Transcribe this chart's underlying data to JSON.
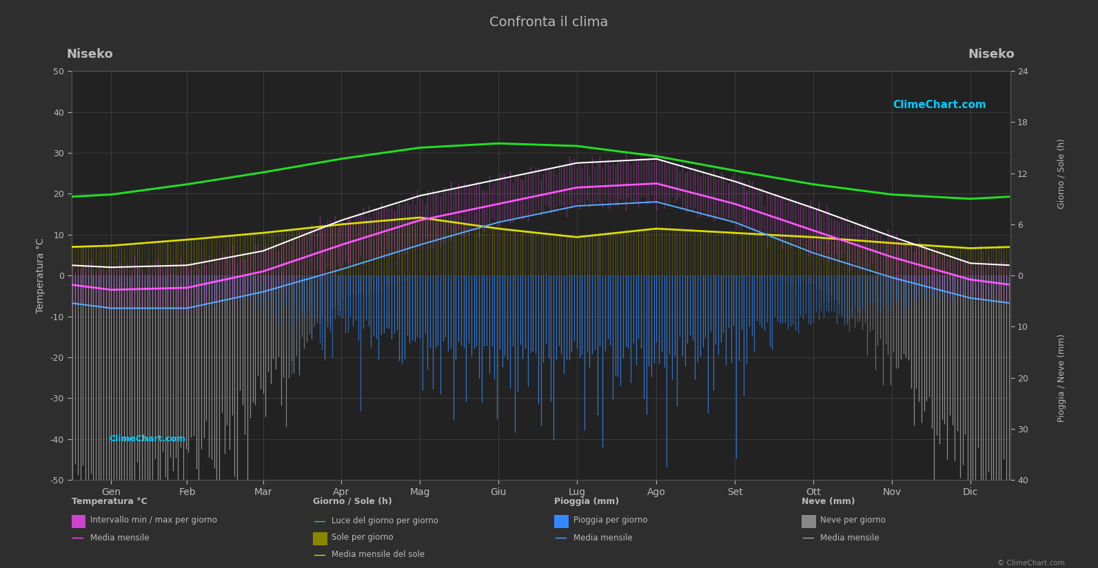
{
  "title": "Confronta il clima",
  "location": "Niseko",
  "months": [
    "Gen",
    "Feb",
    "Mar",
    "Apr",
    "Mag",
    "Giu",
    "Lug",
    "Ago",
    "Set",
    "Ott",
    "Nov",
    "Dic"
  ],
  "temp_ylim": [
    -50,
    50
  ],
  "background_color": "#2e2e2e",
  "plot_bg_color": "#222222",
  "grid_color": "#484848",
  "text_color": "#bbbbbb",
  "temp_mean_monthly": [
    -3.5,
    -3.0,
    1.0,
    7.5,
    13.5,
    17.5,
    21.5,
    22.5,
    17.5,
    11.0,
    4.5,
    -1.0
  ],
  "temp_min_monthly": [
    -8.0,
    -8.0,
    -4.0,
    1.5,
    7.5,
    13.0,
    17.0,
    18.0,
    13.0,
    5.5,
    -0.5,
    -5.5
  ],
  "temp_max_monthly": [
    2.0,
    2.5,
    6.0,
    13.5,
    19.5,
    23.5,
    27.5,
    28.5,
    23.0,
    16.5,
    9.5,
    3.0
  ],
  "daylight_monthly": [
    9.5,
    10.7,
    12.1,
    13.7,
    15.0,
    15.5,
    15.2,
    14.0,
    12.3,
    10.7,
    9.5,
    9.0
  ],
  "sunshine_monthly": [
    3.5,
    4.2,
    5.0,
    6.0,
    6.8,
    5.5,
    4.5,
    5.5,
    5.0,
    4.5,
    3.8,
    3.2
  ],
  "rain_monthly": [
    1.5,
    2.0,
    4.5,
    7.5,
    11.0,
    13.5,
    12.5,
    12.0,
    9.5,
    6.5,
    4.5,
    2.5
  ],
  "snow_monthly": [
    38.0,
    32.0,
    18.0,
    4.0,
    0.0,
    0.0,
    0.0,
    0.0,
    0.0,
    1.5,
    12.0,
    32.0
  ],
  "sun_scale": 2.0833,
  "rain_scale": 1.25,
  "color_daylight": "#22dd22",
  "color_sunshine_line": "#dddd00",
  "color_temp_mean": "#ff55ff",
  "color_temp_min": "#55aaff",
  "color_temp_max": "#ffffff",
  "color_rain_bar": "#3388ff",
  "color_snow_bar": "#aaaaaa",
  "color_sunshine_bar": "#888800",
  "color_temp_bar": "#cc44cc",
  "color_logo": "#00ccff"
}
